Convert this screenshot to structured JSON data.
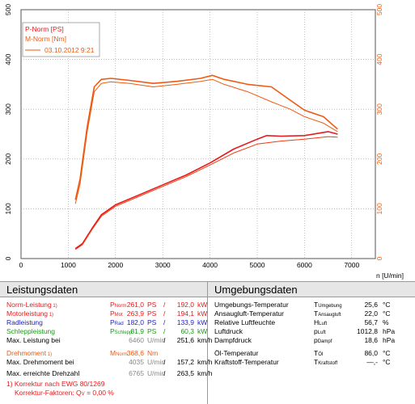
{
  "chart_data": {
    "type": "line",
    "xlabel": "n [U/min]",
    "x_ticks": [
      0,
      1000,
      2000,
      3000,
      4000,
      5000,
      6000,
      7000
    ],
    "y_ticks": [
      0,
      100,
      200,
      300,
      400,
      500
    ],
    "xlim": [
      0,
      7500
    ],
    "ylim": [
      0,
      500
    ],
    "grid": true,
    "legend": {
      "entries": [
        "P-Norm [PS]",
        "M-Norm [Nm]",
        "03.10.2012 9:21"
      ],
      "placement": "top-left"
    },
    "series": [
      {
        "name": "P-Norm [PS]",
        "color": "#e8191a",
        "width": 1.6,
        "x": [
          1150,
          1300,
          1500,
          1700,
          2000,
          2500,
          3000,
          3500,
          4000,
          4500,
          5000,
          5200,
          5500,
          6000,
          6500,
          6700
        ],
        "y": [
          20,
          30,
          60,
          88,
          108,
          128,
          148,
          168,
          192,
          220,
          240,
          247,
          246,
          247,
          255,
          250
        ]
      },
      {
        "name": "",
        "color": "#ee3a10",
        "width": 1.0,
        "x": [
          1150,
          1300,
          1500,
          1700,
          2000,
          2500,
          3000,
          3500,
          4000,
          4500,
          5000,
          5500,
          6000,
          6500,
          6700
        ],
        "y": [
          18,
          28,
          58,
          85,
          105,
          125,
          145,
          165,
          188,
          212,
          230,
          236,
          240,
          245,
          244
        ]
      },
      {
        "name": "M-Norm [Nm]",
        "color": "#ee5a10",
        "width": 1.6,
        "x": [
          1150,
          1250,
          1400,
          1550,
          1700,
          1900,
          2300,
          2800,
          3300,
          3800,
          4050,
          4300,
          4800,
          5300,
          5700,
          6000,
          6400,
          6700
        ],
        "y": [
          118,
          160,
          265,
          345,
          360,
          362,
          358,
          352,
          356,
          362,
          368,
          360,
          350,
          345,
          318,
          298,
          285,
          260
        ]
      },
      {
        "name": "",
        "color": "#ee5a10",
        "width": 1.0,
        "x": [
          1150,
          1250,
          1400,
          1550,
          1700,
          1900,
          2300,
          2800,
          3300,
          3800,
          4050,
          4300,
          4800,
          5300,
          5700,
          6000,
          6400,
          6700
        ],
        "y": [
          110,
          150,
          255,
          335,
          352,
          355,
          352,
          345,
          350,
          356,
          360,
          350,
          335,
          315,
          300,
          285,
          272,
          255
        ]
      }
    ]
  },
  "panel": {
    "left_title": "Leistungsdaten",
    "right_title": "Umgebungsdaten",
    "left_rows": [
      {
        "label": "Norm-Leistung",
        "mark": "1)",
        "sym": "P",
        "sub": "Norm",
        "v1": "261,0",
        "u1": "PS",
        "sep": "/",
        "v2": "192,0",
        "u2": "kW",
        "cls": "red"
      },
      {
        "label": "Motorleistung",
        "mark": "1)",
        "sym": "P",
        "sub": "Mot",
        "v1": "263,9",
        "u1": "PS",
        "sep": "/",
        "v2": "194,1",
        "u2": "kW",
        "cls": "red"
      },
      {
        "label": "Radleistung",
        "mark": "",
        "sym": "P",
        "sub": "Rad",
        "v1": "182,0",
        "u1": "PS",
        "sep": "/",
        "v2": "133,9",
        "u2": "kW",
        "cls": "blue"
      },
      {
        "label": "Schleppleistung",
        "mark": "",
        "sym": "P",
        "sub": "Schlepp",
        "v1": "81,9",
        "u1": "PS",
        "sep": "/",
        "v2": "60,3",
        "u2": "kW",
        "cls": "green"
      },
      {
        "label": "Max. Leistung bei",
        "mark": "",
        "sym": "",
        "sub": "",
        "v1": "6460",
        "u1": "U/min",
        "sep": "/",
        "v2": "251,6",
        "u2": "km/h",
        "cls": ""
      },
      {
        "label": "Drehmoment",
        "mark": "1)",
        "sym": "M",
        "sub": "Norm",
        "v1": "368,6",
        "u1": "Nm",
        "sep": "",
        "v2": "",
        "u2": "",
        "cls": "orange"
      },
      {
        "label": "Max. Drehmoment bei",
        "mark": "",
        "sym": "",
        "sub": "",
        "v1": "4035",
        "u1": "U/min",
        "sep": "/",
        "v2": "157,2",
        "u2": "km/h",
        "cls": ""
      },
      {
        "label": "Max. erreichte Drehzahl",
        "mark": "",
        "sym": "",
        "sub": "",
        "v1": "6765",
        "u1": "U/min",
        "sep": "/",
        "v2": "263,5",
        "u2": "km/h",
        "cls": ""
      }
    ],
    "footnote_1": "1) Korrektur nach EWG 80/1269",
    "footnote_2": "Korrektur-Faktoren: Q",
    "footnote_2_sub": "V",
    "footnote_2_val": "=   0,00 %",
    "right_rows": [
      {
        "label": "Umgebungs-Temperatur",
        "sym": "T",
        "sub": "Umgebung",
        "val": "25,6",
        "unit": "°C"
      },
      {
        "label": "Ansaugluft-Temperatur",
        "sym": "T",
        "sub": "Ansaugluft",
        "val": "22,0",
        "unit": "°C"
      },
      {
        "label": "Relative Luftfeuchte",
        "sym": "H",
        "sub": "Luft",
        "val": "56,7",
        "unit": "%"
      },
      {
        "label": "Luftdruck",
        "sym": "p",
        "sub": "Luft",
        "val": "1012,8",
        "unit": "hPa"
      },
      {
        "label": "Dampfdruck",
        "sym": "p",
        "sub": "Dampf",
        "val": "18,6",
        "unit": "hPa"
      },
      {
        "label": "Öl-Temperatur",
        "sym": "T",
        "sub": "Öl",
        "val": "86,0",
        "unit": "°C"
      },
      {
        "label": "Kraftstoff-Temperatur",
        "sym": "T",
        "sub": "Kraftstoff",
        "val": "—,-",
        "unit": "°C"
      }
    ]
  }
}
